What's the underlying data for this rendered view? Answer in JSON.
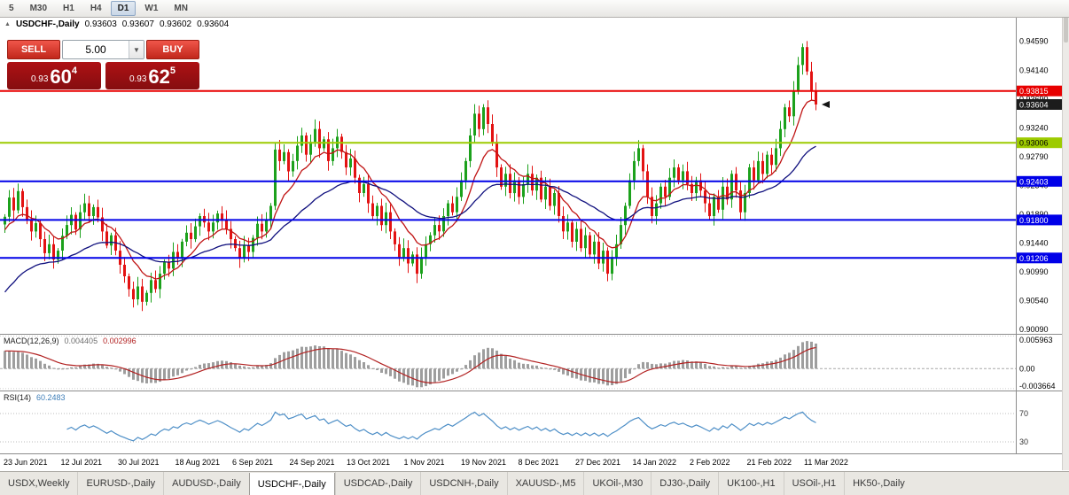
{
  "toolbar": {
    "timeframes": [
      "5",
      "M30",
      "H1",
      "H4",
      "D1",
      "W1",
      "MN"
    ],
    "active": "D1"
  },
  "header": {
    "collapse_icon": "▲",
    "title": "USDCHF-,Daily",
    "open": "0.93603",
    "high": "0.93607",
    "low": "0.93602",
    "close": "0.93604"
  },
  "trade_panel": {
    "sell_label": "SELL",
    "buy_label": "BUY",
    "volume": "5.00",
    "dropdown_icon": "▼",
    "sell_price": {
      "prefix": "0.93",
      "big": "60",
      "sup": "4"
    },
    "buy_price": {
      "prefix": "0.93",
      "big": "62",
      "sup": "5"
    }
  },
  "indicators": {
    "macd": {
      "label": "MACD(12,26,9)",
      "value_main": "0.004405",
      "value_signal": "0.002996"
    },
    "rsi": {
      "label": "RSI(14)",
      "value": "60.2483"
    }
  },
  "tabs": {
    "items": [
      "USDX,Weekly",
      "EURUSD-,Daily",
      "AUDUSD-,Daily",
      "USDCHF-,Daily",
      "USDCAD-,Daily",
      "USDCNH-,Daily",
      "XAUUSD-,M5",
      "UKOil-,M30",
      "DJ30-,Daily",
      "UK100-,H1",
      "USOil-,H1",
      "HK50-,Daily"
    ],
    "active": "USDCHF-,Daily"
  },
  "chart_data": {
    "type": "candlestick",
    "symbol": "USDCHF-",
    "timeframe": "Daily",
    "ohlc_current": {
      "open": 0.93603,
      "high": 0.93607,
      "low": 0.93602,
      "close": 0.93604
    },
    "closes": [
      0.9185,
      0.9215,
      0.9195,
      0.9225,
      0.92,
      0.918,
      0.9162,
      0.9175,
      0.915,
      0.9128,
      0.9142,
      0.9118,
      0.9132,
      0.9155,
      0.9172,
      0.9188,
      0.9165,
      0.9192,
      0.9206,
      0.9186,
      0.92,
      0.9184,
      0.9162,
      0.914,
      0.9156,
      0.9132,
      0.911,
      0.9092,
      0.9072,
      0.9056,
      0.9076,
      0.9052,
      0.9066,
      0.9086,
      0.9072,
      0.9096,
      0.9114,
      0.9104,
      0.913,
      0.912,
      0.9146,
      0.916,
      0.915,
      0.917,
      0.9186,
      0.9176,
      0.9162,
      0.9176,
      0.919,
      0.918,
      0.9166,
      0.915,
      0.9136,
      0.912,
      0.914,
      0.913,
      0.9152,
      0.9174,
      0.9162,
      0.918,
      0.9202,
      0.929,
      0.9272,
      0.9286,
      0.9256,
      0.9272,
      0.9296,
      0.9312,
      0.9282,
      0.9302,
      0.9322,
      0.9292,
      0.9306,
      0.9272,
      0.9292,
      0.931,
      0.9286,
      0.9262,
      0.9276,
      0.9246,
      0.9222,
      0.9236,
      0.9206,
      0.9186,
      0.9202,
      0.9172,
      0.9192,
      0.9162,
      0.9142,
      0.9122,
      0.9136,
      0.9112,
      0.9126,
      0.9096,
      0.9122,
      0.9142,
      0.9156,
      0.9172,
      0.9162,
      0.9186,
      0.9206,
      0.9192,
      0.9216,
      0.9242,
      0.9272,
      0.9312,
      0.9346,
      0.9322,
      0.9356,
      0.933,
      0.9302,
      0.9262,
      0.9232,
      0.9252,
      0.9222,
      0.9242,
      0.9216,
      0.9236,
      0.9252,
      0.9226,
      0.9246,
      0.9212,
      0.9232,
      0.9202,
      0.9222,
      0.9186,
      0.9162,
      0.9176,
      0.9146,
      0.9166,
      0.9136,
      0.9156,
      0.9126,
      0.9146,
      0.9112,
      0.9132,
      0.9096,
      0.9122,
      0.9142,
      0.9172,
      0.9202,
      0.9242,
      0.9272,
      0.9292,
      0.9256,
      0.9216,
      0.9186,
      0.9206,
      0.9232,
      0.9216,
      0.9246,
      0.9262,
      0.9242,
      0.9256,
      0.9236,
      0.9222,
      0.9242,
      0.9226,
      0.9206,
      0.9186,
      0.9216,
      0.9196,
      0.9232,
      0.9212,
      0.9252,
      0.9226,
      0.9192,
      0.9222,
      0.9262,
      0.9242,
      0.9272,
      0.9252,
      0.9282,
      0.9266,
      0.9292,
      0.9322,
      0.9356,
      0.9342,
      0.9382,
      0.9422,
      0.945,
      0.9412,
      0.9382,
      0.93604
    ],
    "price_axis": {
      "render_top": 0.9496,
      "render_bottom": 0.9002
    },
    "price_axis_labels": [
      "0.94590",
      "0.94140",
      "0.93690",
      "0.93240",
      "0.92790",
      "0.92340",
      "0.91890",
      "0.91440",
      "0.90990",
      "0.90540",
      "0.90090"
    ],
    "h_lines": [
      {
        "price": 0.93815,
        "color": "#E80000",
        "width": 2
      },
      {
        "price": 0.93006,
        "color": "#9DCB00",
        "width": 2
      },
      {
        "price": 0.92403,
        "color": "#0000E8",
        "width": 2
      },
      {
        "price": 0.918,
        "color": "#0000E8",
        "width": 2
      },
      {
        "price": 0.91206,
        "color": "#0000E8",
        "width": 2
      }
    ],
    "badges": [
      {
        "price": 0.93815,
        "bg": "#E80000",
        "fg": "#FFFFFF"
      },
      {
        "price": 0.93604,
        "bg": "#1C1C1C",
        "fg": "#FFFFFF"
      },
      {
        "price": 0.93006,
        "bg": "#9DCB00",
        "fg": "#000000"
      },
      {
        "price": 0.92403,
        "bg": "#0000E8",
        "fg": "#FFFFFF"
      },
      {
        "price": 0.918,
        "bg": "#0000E8",
        "fg": "#FFFFFF"
      },
      {
        "price": 0.91206,
        "bg": "#0000E8",
        "fg": "#FFFFFF"
      }
    ],
    "moving_averages": [
      {
        "period": 10,
        "color": "#C01414",
        "seed": 0.916
      },
      {
        "period": 34,
        "color": "#10107E",
        "seed": 0.906
      }
    ],
    "macd": {
      "fast": 12,
      "slow": 26,
      "signal": 9,
      "seed_slow": 0.915,
      "value_main": 0.004405,
      "value_signal": 0.002996,
      "scale_max": 0.0062,
      "scale_min": -0.004,
      "axis_labels": [
        "0.005963",
        "0.00",
        "-0.003664"
      ]
    },
    "rsi": {
      "period": 14,
      "value": 60.2483,
      "levels": [
        70,
        30
      ],
      "color": "#4E8FC7"
    },
    "x_labels": [
      "23 Jun 2021",
      "12 Jul 2021",
      "30 Jul 2021",
      "18 Aug 2021",
      "6 Sep 2021",
      "24 Sep 2021",
      "13 Oct 2021",
      "1 Nov 2021",
      "19 Nov 2021",
      "8 Dec 2021",
      "27 Dec 2021",
      "14 Jan 2022",
      "2 Feb 2022",
      "21 Feb 2022",
      "11 Mar 2022"
    ],
    "colors": {
      "up": "#1CA11C",
      "down": "#E31212",
      "macd_hist": "#9E9E9E",
      "macd_signal": "#B22222",
      "separator": "#8C8C8C"
    }
  }
}
